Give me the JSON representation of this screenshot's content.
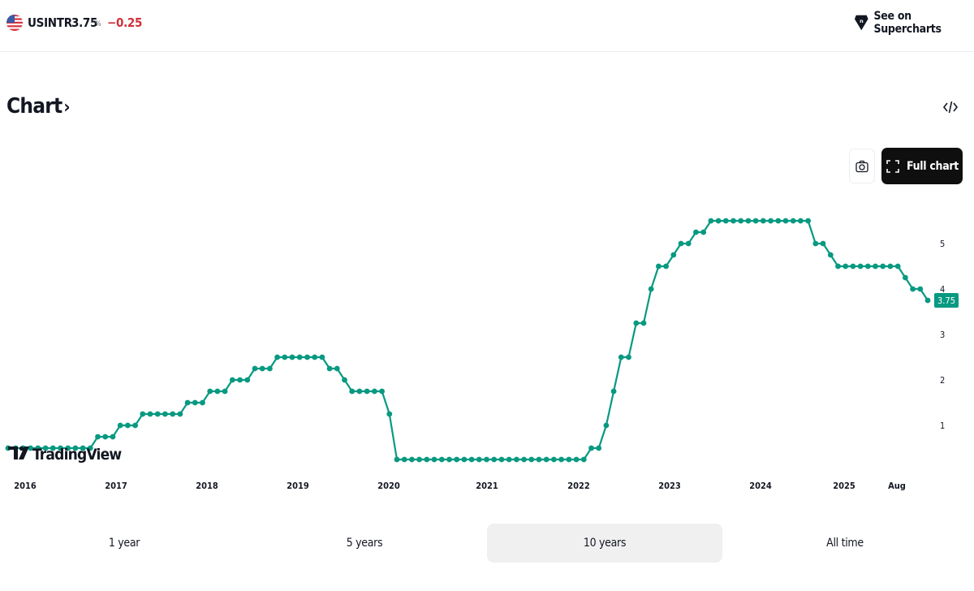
{
  "header": {
    "symbol": "USINTR",
    "price": "3.75",
    "unit": "%",
    "change": "−0.25",
    "supercharts_label": "See on Supercharts"
  },
  "section": {
    "title": "Chart",
    "chevron": "›",
    "embed_icon": "code-icon"
  },
  "buttons": {
    "snapshot_icon": "camera-icon",
    "full_chart_label": "Full chart",
    "full_chart_icon": "fullscreen-icon"
  },
  "chart_data": {
    "type": "line",
    "color": "#089981",
    "current_label": "3.75",
    "watermark": "TradingView",
    "x_ticks": [
      "2016",
      "2017",
      "2018",
      "2019",
      "2020",
      "2021",
      "2022",
      "2023",
      "2024",
      "2025",
      "Aug"
    ],
    "y_ticks": [
      1,
      2,
      3,
      4,
      5
    ],
    "ylim": [
      0,
      5.9
    ],
    "series": [
      {
        "values": [
          0.5,
          0.5,
          0.5,
          0.5,
          0.5,
          0.5,
          0.5,
          0.5,
          0.5,
          0.5,
          0.5,
          0.5,
          0.75,
          0.75,
          0.75,
          1,
          1,
          1,
          1.25,
          1.25,
          1.25,
          1.25,
          1.25,
          1.25,
          1.5,
          1.5,
          1.5,
          1.75,
          1.75,
          1.75,
          2,
          2,
          2,
          2.25,
          2.25,
          2.25,
          2.5,
          2.5,
          2.5,
          2.5,
          2.5,
          2.5,
          2.5,
          2.25,
          2.25,
          2,
          1.75,
          1.75,
          1.75,
          1.75,
          1.75,
          1.25,
          0.25,
          0.25,
          0.25,
          0.25,
          0.25,
          0.25,
          0.25,
          0.25,
          0.25,
          0.25,
          0.25,
          0.25,
          0.25,
          0.25,
          0.25,
          0.25,
          0.25,
          0.25,
          0.25,
          0.25,
          0.25,
          0.25,
          0.25,
          0.25,
          0.25,
          0.25,
          0.5,
          0.5,
          1,
          1.75,
          2.5,
          2.5,
          3.25,
          3.25,
          4,
          4.5,
          4.5,
          4.75,
          5,
          5,
          5.25,
          5.25,
          5.5,
          5.5,
          5.5,
          5.5,
          5.5,
          5.5,
          5.5,
          5.5,
          5.5,
          5.5,
          5.5,
          5.5,
          5.5,
          5.5,
          5,
          5,
          4.75,
          4.5,
          4.5,
          4.5,
          4.5,
          4.5,
          4.5,
          4.5,
          4.5,
          4.5,
          4.25,
          4,
          4,
          3.75
        ]
      }
    ]
  },
  "ranges": [
    {
      "label": "1 year",
      "active": false
    },
    {
      "label": "5 years",
      "active": false
    },
    {
      "label": "10 years",
      "active": true
    },
    {
      "label": "All time",
      "active": false
    }
  ]
}
